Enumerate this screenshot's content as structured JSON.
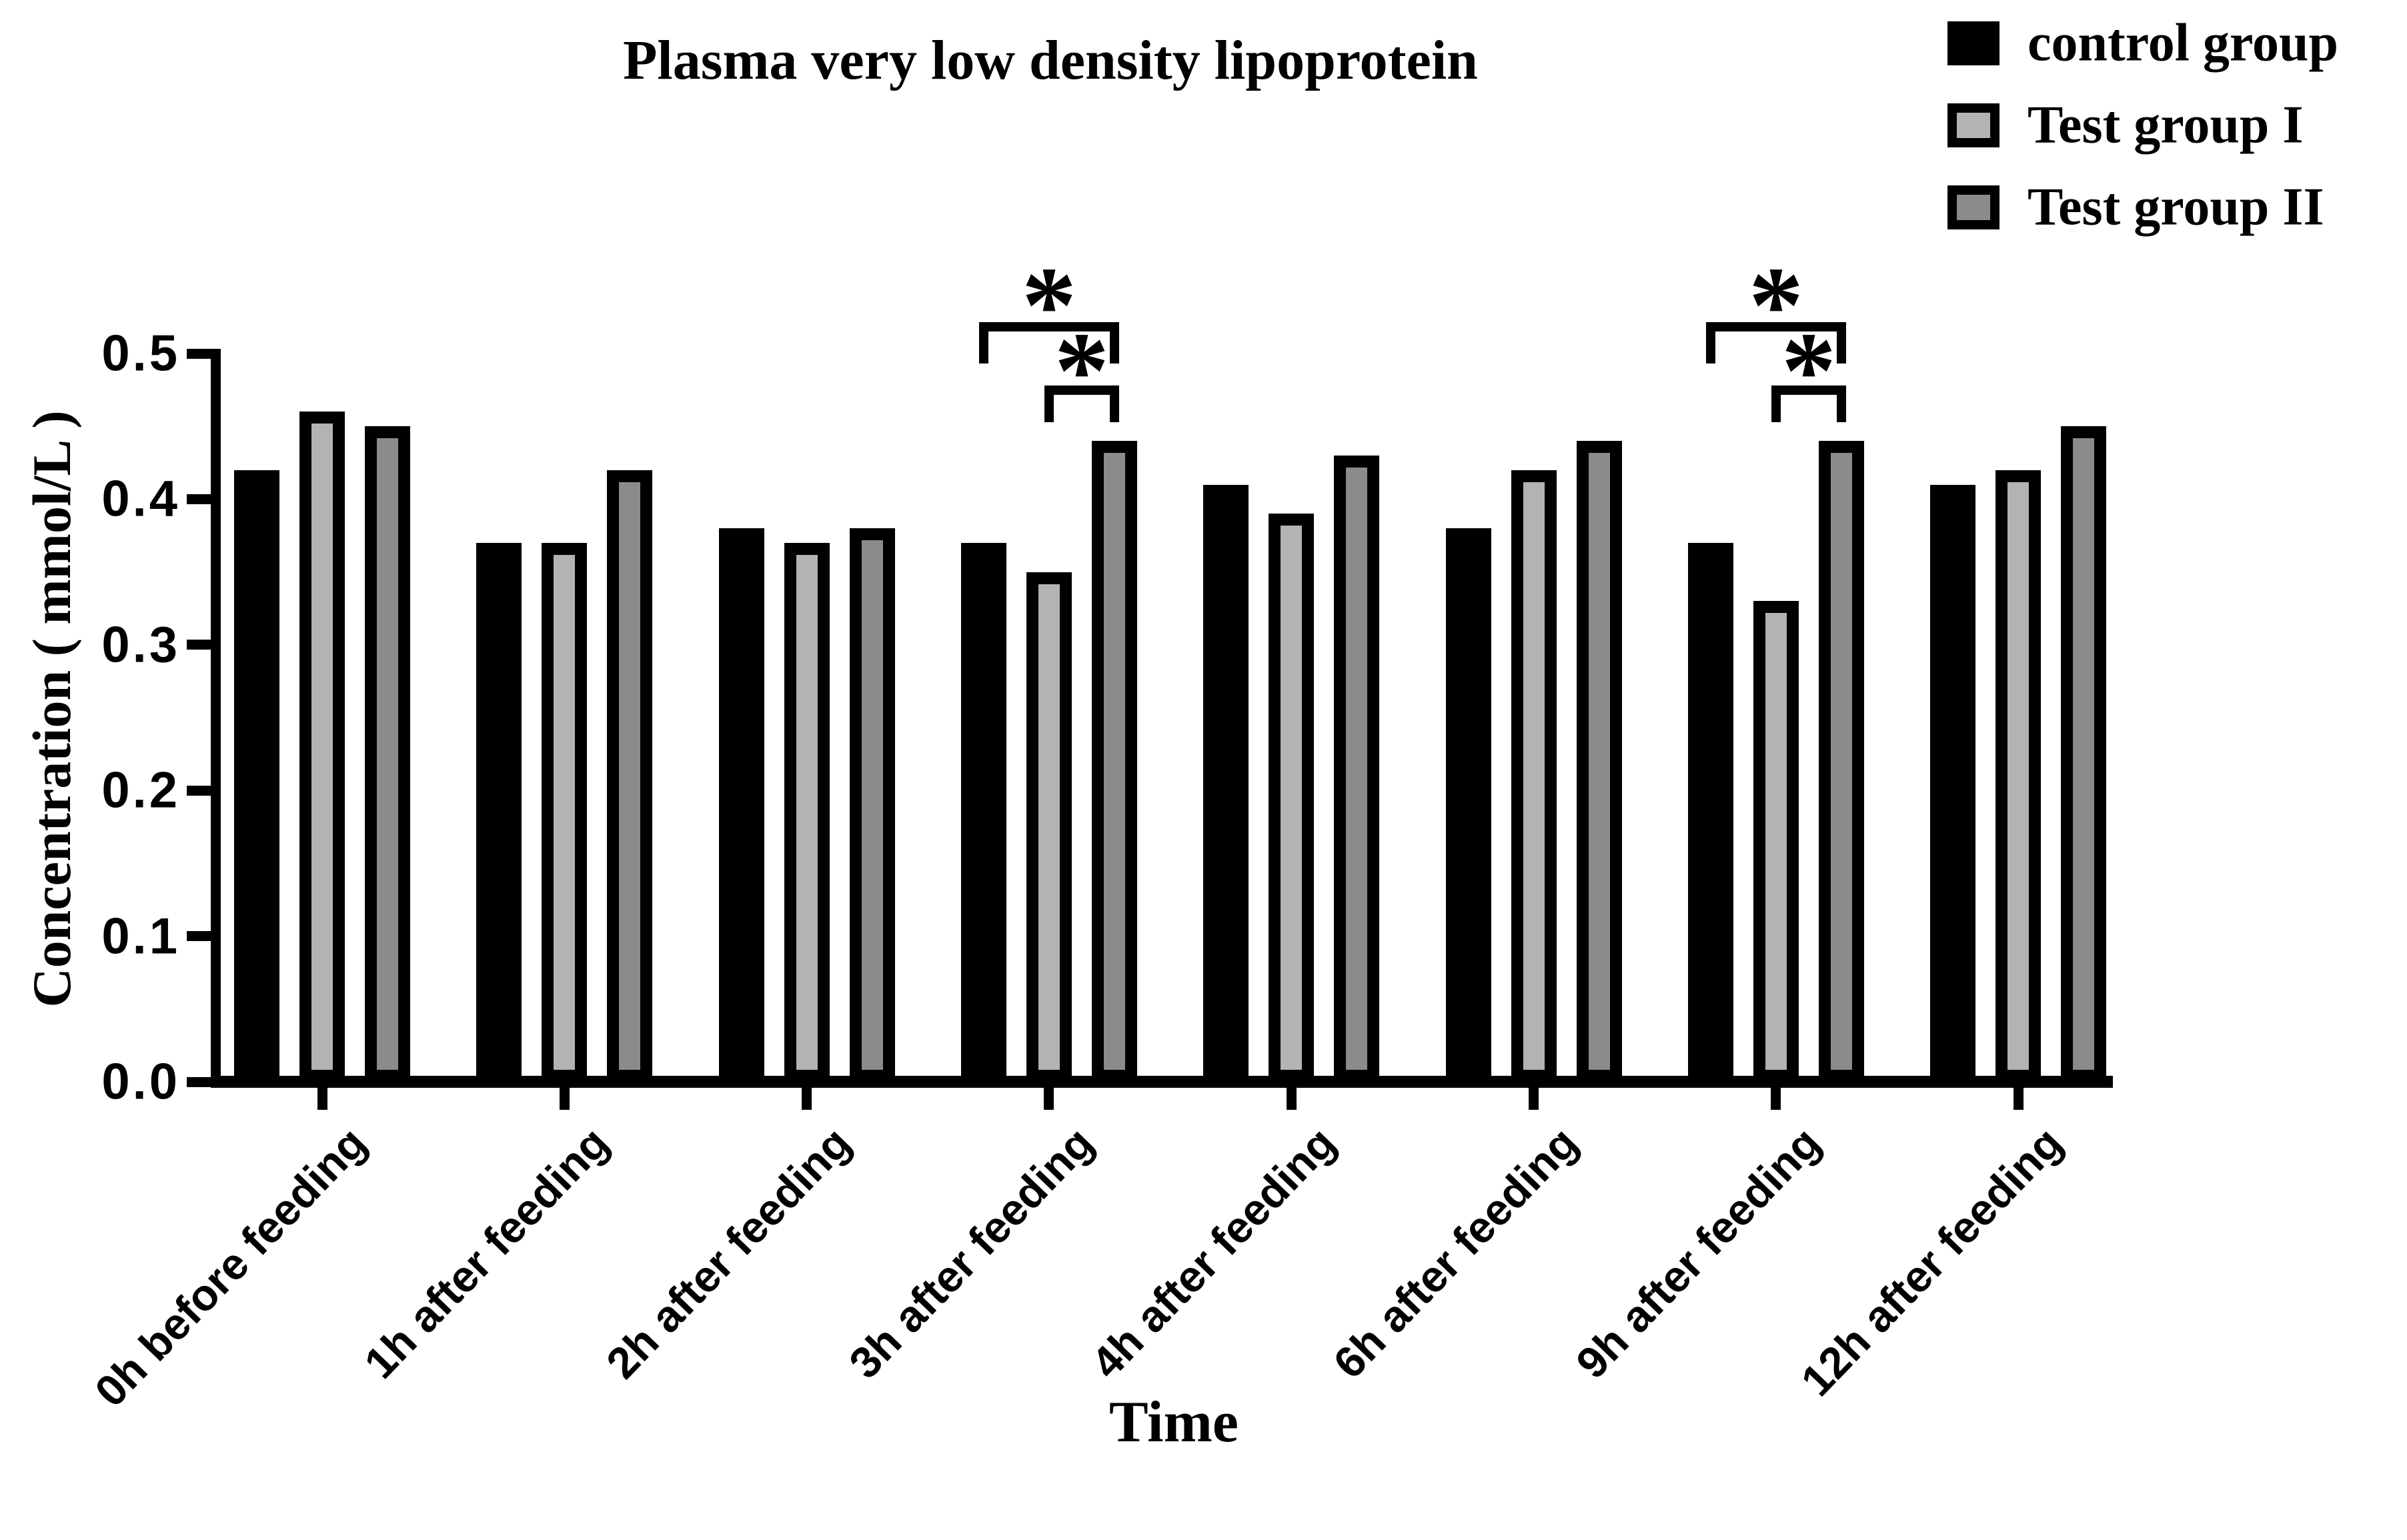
{
  "chart_data": {
    "type": "bar",
    "title": "Plasma very low density lipoprotein",
    "xlabel": "Time",
    "ylabel": "Concentration ( mmol/L )",
    "ylim": [
      0.0,
      0.5
    ],
    "ytick_labels": [
      "0.0",
      "0.1",
      "0.2",
      "0.3",
      "0.4",
      "0.5"
    ],
    "grid": false,
    "legend_position": "top-right",
    "categories": [
      "0h before feeding",
      "1h after feeding",
      "2h after feeding",
      "3h after feeding",
      "4h after feeding",
      "6h after feeding",
      "9h after feeding",
      "12h after feeding"
    ],
    "series": [
      {
        "name": "control group",
        "color": "#000000",
        "values": [
          0.42,
          0.37,
          0.38,
          0.37,
          0.41,
          0.38,
          0.37,
          0.41
        ]
      },
      {
        "name": "Test group I",
        "color": "#b3b3b3",
        "values": [
          0.46,
          0.37,
          0.37,
          0.35,
          0.39,
          0.42,
          0.33,
          0.42
        ]
      },
      {
        "name": "Test group II",
        "color": "#8b8b8b",
        "values": [
          0.45,
          0.42,
          0.38,
          0.44,
          0.43,
          0.44,
          0.44,
          0.45
        ]
      }
    ],
    "annotations": [
      {
        "category": "3h after feeding",
        "comparisons": [
          {
            "from": "control group",
            "to": "Test group II",
            "label": "*"
          },
          {
            "from": "Test group I",
            "to": "Test group II",
            "label": "*"
          }
        ]
      },
      {
        "category": "9h after feeding",
        "comparisons": [
          {
            "from": "control group",
            "to": "Test group II",
            "label": "*"
          },
          {
            "from": "Test group I",
            "to": "Test group II",
            "label": "*"
          }
        ]
      }
    ]
  }
}
